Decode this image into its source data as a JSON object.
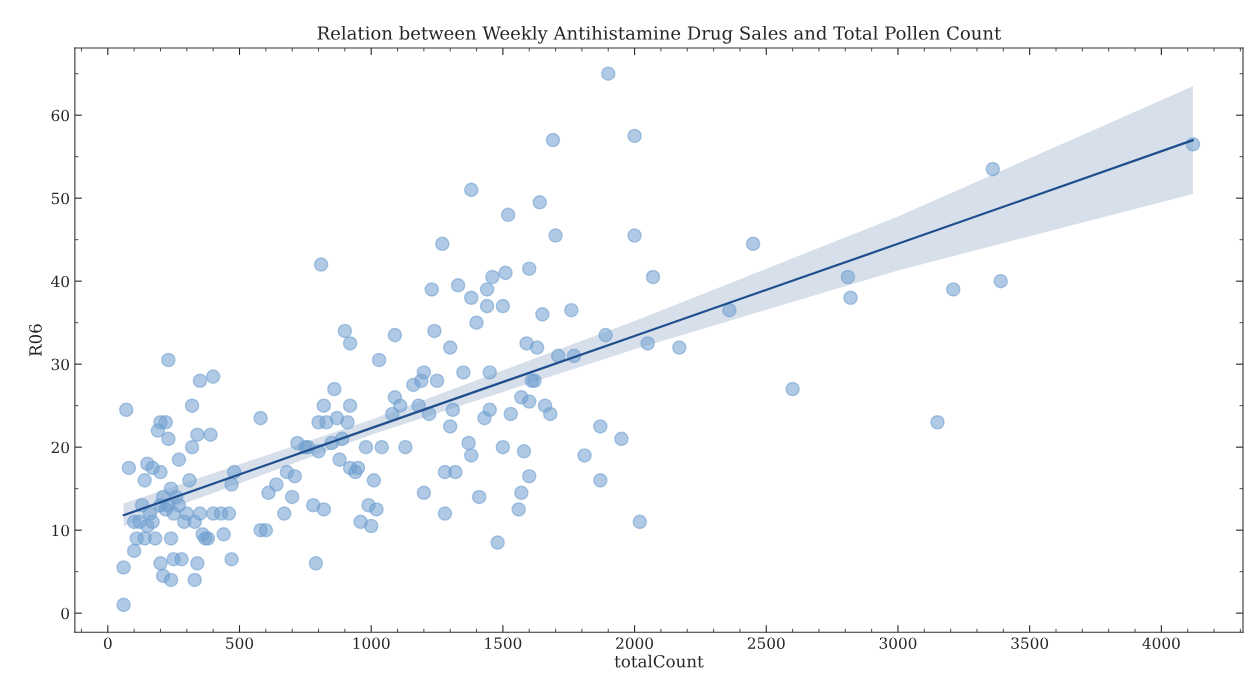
{
  "chart_data": {
    "type": "scatter",
    "title": "Relation between Weekly Antihistamine Drug Sales and Total Pollen Count",
    "xlabel": "totalCount",
    "ylabel": "R06",
    "xlim": [
      -125,
      4310
    ],
    "ylim": [
      -2.3,
      68.1
    ],
    "xticks": [
      0,
      500,
      1000,
      1500,
      2000,
      2500,
      3000,
      3500,
      4000
    ],
    "yticks": [
      0,
      10,
      20,
      30,
      40,
      50,
      60
    ],
    "grid": false,
    "series": [
      {
        "marker": "circle",
        "color": "#6f9fd0",
        "x": [
          60,
          60,
          70,
          80,
          100,
          100,
          110,
          120,
          130,
          140,
          140,
          150,
          150,
          160,
          170,
          170,
          180,
          190,
          200,
          200,
          200,
          200,
          210,
          210,
          220,
          220,
          230,
          230,
          230,
          240,
          240,
          240,
          250,
          250,
          260,
          270,
          270,
          280,
          290,
          300,
          310,
          320,
          320,
          330,
          330,
          340,
          340,
          350,
          350,
          360,
          370,
          380,
          390,
          400,
          400,
          430,
          440,
          460,
          470,
          470,
          480,
          580,
          580,
          600,
          610,
          640,
          670,
          680,
          700,
          710,
          720,
          750,
          760,
          780,
          790,
          800,
          800,
          810,
          820,
          820,
          830,
          850,
          860,
          870,
          880,
          890,
          900,
          910,
          920,
          920,
          920,
          940,
          950,
          960,
          980,
          990,
          1000,
          1010,
          1020,
          1030,
          1040,
          1080,
          1090,
          1090,
          1110,
          1130,
          1160,
          1180,
          1190,
          1200,
          1200,
          1220,
          1230,
          1240,
          1250,
          1270,
          1280,
          1280,
          1300,
          1300,
          1310,
          1320,
          1330,
          1350,
          1370,
          1380,
          1380,
          1380,
          1400,
          1410,
          1430,
          1440,
          1440,
          1450,
          1450,
          1460,
          1480,
          1500,
          1500,
          1510,
          1520,
          1530,
          1560,
          1570,
          1570,
          1580,
          1590,
          1600,
          1600,
          1600,
          1610,
          1620,
          1630,
          1640,
          1650,
          1660,
          1680,
          1690,
          1700,
          1710,
          1760,
          1770,
          1810,
          1870,
          1870,
          1890,
          1900,
          1950,
          2000,
          2000,
          2020,
          2050,
          2070,
          2170,
          2360,
          2450,
          2600,
          2810,
          2820,
          3150,
          3210,
          3360,
          3390,
          4120
        ],
        "values": [
          1,
          5.5,
          24.5,
          17.5,
          7.5,
          11,
          9,
          11,
          13,
          16,
          9,
          18,
          10.5,
          12,
          17.5,
          11,
          9,
          22,
          23,
          17,
          13,
          6,
          14,
          4.5,
          23,
          12.5,
          30.5,
          21,
          13,
          15,
          9,
          4,
          12,
          6.5,
          14,
          18.5,
          13,
          6.5,
          11,
          12,
          16,
          20,
          25,
          11,
          4,
          21.5,
          6,
          28,
          12,
          9.5,
          9,
          9,
          21.5,
          28.5,
          12,
          12,
          9.5,
          12,
          6.5,
          15.5,
          17,
          23.5,
          10,
          10,
          14.5,
          15.5,
          12,
          17,
          14,
          16.5,
          20.5,
          20,
          20,
          13,
          6,
          23,
          19.5,
          42,
          25,
          12.5,
          23,
          20.5,
          27,
          23.5,
          18.5,
          21,
          34,
          23,
          32.5,
          25,
          17.5,
          17,
          17.5,
          11,
          20,
          13,
          10.5,
          16,
          12.5,
          30.5,
          20,
          24,
          33.5,
          26,
          25,
          20,
          27.5,
          25,
          28,
          29,
          14.5,
          24,
          39,
          34,
          28,
          44.5,
          12,
          17,
          32,
          22.5,
          24.5,
          17,
          39.5,
          29,
          20.5,
          19,
          51,
          38,
          35,
          14,
          23.5,
          39,
          37,
          29,
          24.5,
          40.5,
          8.5,
          37,
          20,
          41,
          48,
          24,
          12.5,
          14.5,
          26,
          19.5,
          32.5,
          25.5,
          41.5,
          16.5,
          28,
          28,
          32,
          49.5,
          36,
          25,
          24,
          57,
          45.5,
          31,
          36.5,
          31,
          19,
          22.5,
          16,
          33.5,
          65,
          21,
          57.5,
          45.5,
          11,
          32.5,
          40.5,
          32,
          36.5,
          44.5,
          27,
          40.5,
          38,
          23,
          39,
          53.5,
          40,
          56.5
        ]
      },
      {
        "type": "line",
        "color": "#1f4e8c",
        "x": [
          60,
          1000,
          2000,
          3000,
          4120
        ],
        "values": [
          11.8,
          22.3,
          33.4,
          44.5,
          57.0
        ],
        "lower": [
          10.5,
          21.5,
          31.8,
          41.3,
          50.5
        ],
        "upper": [
          13.2,
          23.3,
          35.2,
          47.8,
          63.5
        ]
      }
    ]
  }
}
